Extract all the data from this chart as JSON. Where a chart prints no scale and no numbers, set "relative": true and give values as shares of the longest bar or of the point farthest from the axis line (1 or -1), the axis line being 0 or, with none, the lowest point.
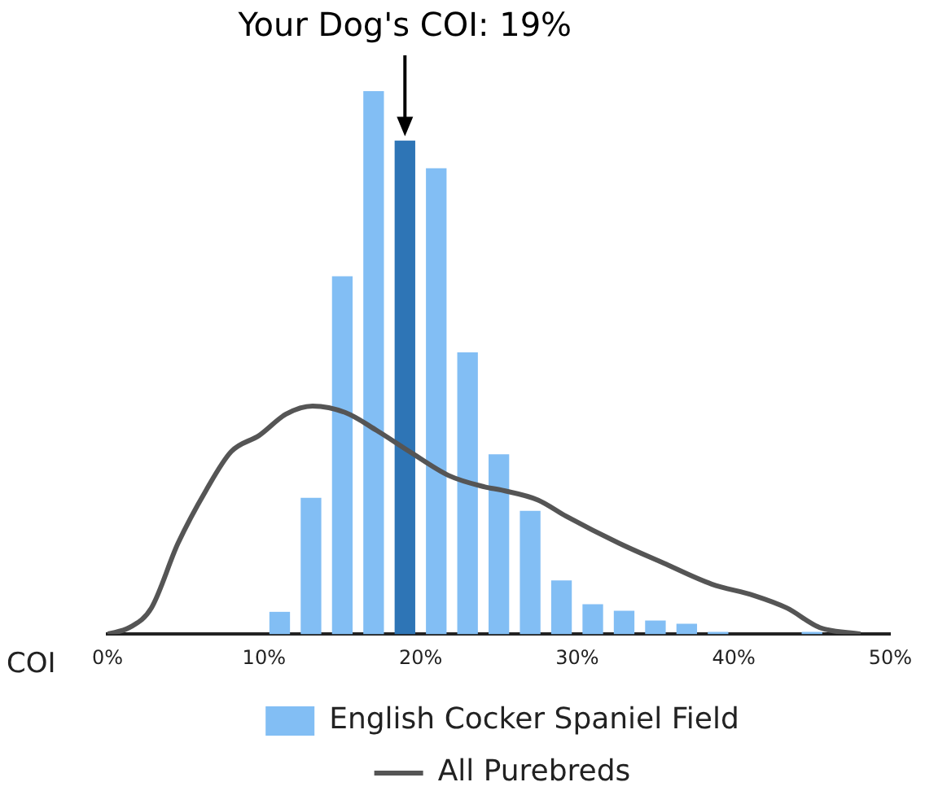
{
  "chart_data": {
    "type": "bar",
    "relative": true,
    "xlabel": "COI",
    "xlim": [
      0,
      50
    ],
    "xticks": [
      {
        "value": 0,
        "label": "0%"
      },
      {
        "value": 10,
        "label": "10%"
      },
      {
        "value": 20,
        "label": "20%"
      },
      {
        "value": 30,
        "label": "30%"
      },
      {
        "value": 40,
        "label": "40%"
      },
      {
        "value": 50,
        "label": "50%"
      }
    ],
    "annotations": [
      "Your Dog's COI: 19%"
    ],
    "legend": "bottom",
    "grid": false,
    "series": [
      {
        "name": "English Cocker Spaniel Field",
        "x": [
          11,
          13,
          15,
          17,
          19,
          21,
          23,
          25,
          27,
          29,
          31,
          33,
          35,
          37,
          39,
          45
        ],
        "values": [
          0.04,
          0.25,
          0.658,
          1,
          0.908,
          0.857,
          0.518,
          0.33,
          0.226,
          0.098,
          0.054,
          0.042,
          0.024,
          0.018,
          0.003,
          0.003
        ],
        "color": "#82bef4",
        "colors": [
          "#82bef4",
          "#82bef4",
          "#82bef4",
          "#82bef4",
          "#2e75b6",
          "#82bef4",
          "#82bef4",
          "#82bef4",
          "#82bef4",
          "#82bef4",
          "#82bef4",
          "#82bef4",
          "#82bef4",
          "#82bef4",
          "#82bef4",
          "#82bef4"
        ]
      },
      {
        "name": "All Purebreds",
        "type": "line",
        "color": "#555555",
        "x": [
          0,
          1.4,
          2.8,
          4.5,
          6.3,
          7.9,
          9.7,
          11.4,
          13.1,
          15.2,
          17.2,
          19.3,
          21.8,
          24.1,
          25.2,
          27.5,
          29.3,
          32.7,
          35.5,
          38.6,
          41.3,
          43.4,
          45.5,
          48.1
        ],
        "values": [
          0,
          0.012,
          0.048,
          0.167,
          0.265,
          0.336,
          0.366,
          0.405,
          0.42,
          0.408,
          0.375,
          0.336,
          0.292,
          0.271,
          0.265,
          0.247,
          0.217,
          0.167,
          0.131,
          0.092,
          0.071,
          0.048,
          0.012,
          0
        ]
      }
    ]
  }
}
